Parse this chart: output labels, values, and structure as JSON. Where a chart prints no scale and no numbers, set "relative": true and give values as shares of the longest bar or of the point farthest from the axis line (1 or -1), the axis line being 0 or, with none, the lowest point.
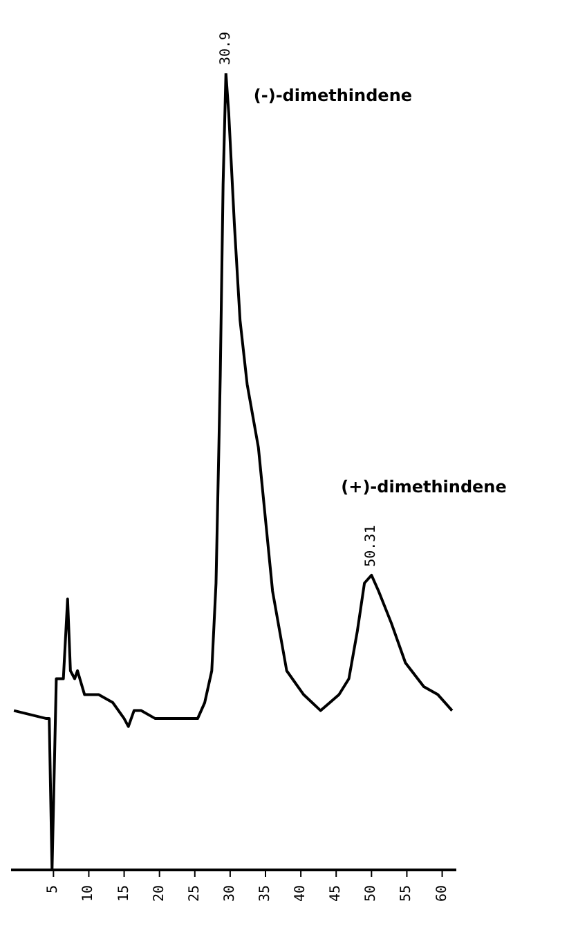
{
  "chart_data": {
    "type": "line",
    "relative": true,
    "x": [
      -0.6,
      4.0,
      4.4,
      4.8,
      5.4,
      6.4,
      7.0,
      7.4,
      8.0,
      8.4,
      9.4,
      11.4,
      13.4,
      15.0,
      15.6,
      16.4,
      17.4,
      19.4,
      21.4,
      23.4,
      25.4,
      26.4,
      27.4,
      28.0,
      28.4,
      28.6,
      29.0,
      29.4,
      29.8,
      30.6,
      31.4,
      32.4,
      34.0,
      36.0,
      38.0,
      40.4,
      42.8,
      45.4,
      46.8,
      48.0,
      49.0,
      50.0,
      51.0,
      52.8,
      54.8,
      57.4,
      59.4,
      61.4
    ],
    "series": [
      {
        "color": "#000000",
        "values": [
          0.2,
          0.19,
          0.19,
          0,
          0.24,
          0.24,
          0.34,
          0.25,
          0.24,
          0.25,
          0.22,
          0.22,
          0.21,
          0.19,
          0.18,
          0.2,
          0.2,
          0.19,
          0.19,
          0.19,
          0.19,
          0.21,
          0.25,
          0.36,
          0.53,
          0.62,
          0.86,
          1,
          0.95,
          0.81,
          0.69,
          0.61,
          0.53,
          0.35,
          0.25,
          0.22,
          0.2,
          0.22,
          0.24,
          0.3,
          0.36,
          0.37,
          0.35,
          0.31,
          0.26,
          0.23,
          0.22,
          0.2
        ]
      }
    ],
    "xlim": [
      -1,
      62
    ],
    "xticks": [
      5,
      10,
      15,
      20,
      25,
      30,
      35,
      40,
      45,
      50,
      55,
      60
    ],
    "tick_labels": "x",
    "grid": false,
    "legend": false,
    "marker": "none",
    "line_style": "solid",
    "annotations": [
      {
        "text": "30.9",
        "x": 29.4,
        "y": 1
      },
      {
        "text": "50.31",
        "x": 50.0,
        "y": 0.37
      },
      "(-)-dimethindene",
      "(+)-dimethindene"
    ]
  }
}
